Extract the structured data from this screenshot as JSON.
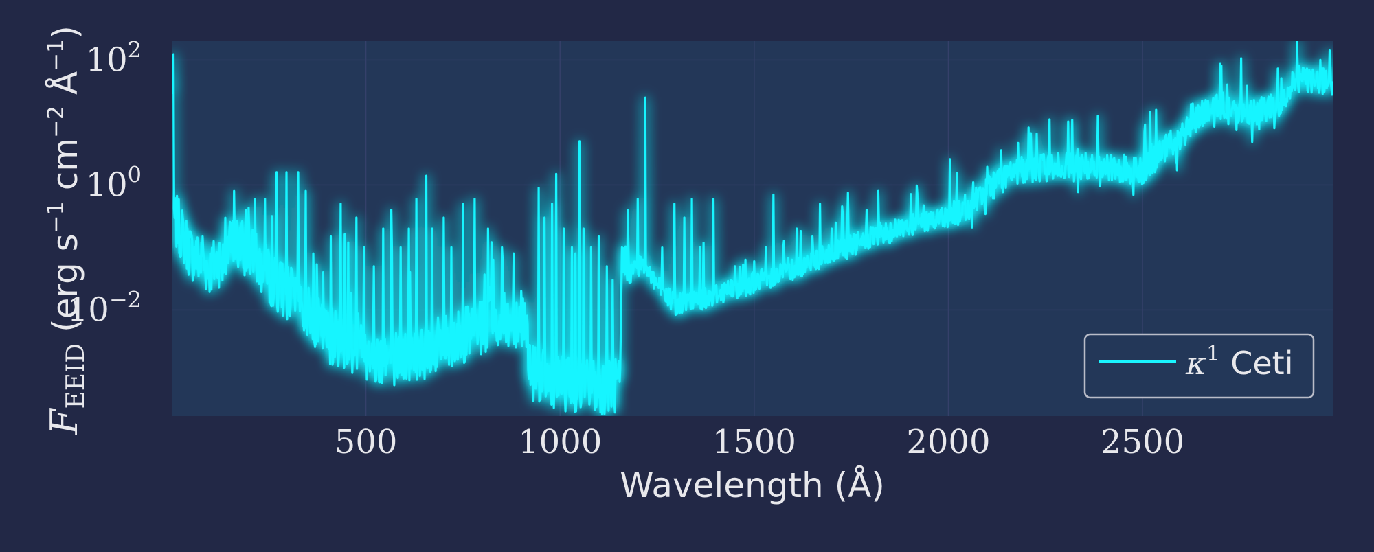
{
  "colors": {
    "background": "#222846",
    "plot_area": "#233758",
    "grid": "#35406a",
    "series": "#19f5ff",
    "text": "#e8e8ec",
    "legend_border": "#b9bcc8"
  },
  "chart_data": {
    "type": "line",
    "xlabel": "Wavelength (Å)",
    "ylabel": {
      "symbol": "F",
      "subscript": "EEID",
      "units": " (erg s",
      "units_exp1": "−1",
      "units_mid": " cm",
      "units_exp2": "−2",
      "units_mid2": " Å",
      "units_exp3": "−1",
      "units_end": ")"
    },
    "xlim": [
      0,
      2990
    ],
    "ylim": [
      0.0002,
      200
    ],
    "yscale": "log",
    "x_ticks": [
      500,
      1000,
      1500,
      2000,
      2500
    ],
    "x_tick_labels": [
      "500",
      "1000",
      "1500",
      "2000",
      "2500"
    ],
    "y_ticks": [
      {
        "value": 100,
        "base": "10",
        "exp": "2"
      },
      {
        "value": 1,
        "base": "10",
        "exp": "0"
      },
      {
        "value": 0.01,
        "base": "10",
        "exp": "−2"
      }
    ],
    "grid": true,
    "legend": {
      "position": "lower-right",
      "entries": [
        {
          "symbol": "κ",
          "sup": "1",
          "label": "Ceti"
        }
      ]
    },
    "series": [
      {
        "name": "κ1 Ceti",
        "continuum": [
          [
            5,
            0.3
          ],
          [
            20,
            0.2
          ],
          [
            50,
            0.08
          ],
          [
            100,
            0.045
          ],
          [
            160,
            0.12
          ],
          [
            200,
            0.08
          ],
          [
            260,
            0.03
          ],
          [
            320,
            0.015
          ],
          [
            400,
            0.004
          ],
          [
            480,
            0.0025
          ],
          [
            540,
            0.0017
          ],
          [
            600,
            0.0018
          ],
          [
            650,
            0.0022
          ],
          [
            700,
            0.003
          ],
          [
            780,
            0.0045
          ],
          [
            850,
            0.0065
          ],
          [
            910,
            0.0075
          ],
          [
            925,
            0.001
          ],
          [
            1000,
            0.0007
          ],
          [
            1050,
            0.0006
          ],
          [
            1100,
            0.0006
          ],
          [
            1155,
            0.0006
          ],
          [
            1160,
            0.06
          ],
          [
            1180,
            0.04
          ],
          [
            1215,
            0.06
          ],
          [
            1260,
            0.02
          ],
          [
            1300,
            0.012
          ],
          [
            1350,
            0.014
          ],
          [
            1400,
            0.018
          ],
          [
            1500,
            0.028
          ],
          [
            1600,
            0.045
          ],
          [
            1700,
            0.08
          ],
          [
            1800,
            0.14
          ],
          [
            1900,
            0.22
          ],
          [
            2000,
            0.32
          ],
          [
            2050,
            0.45
          ],
          [
            2100,
            0.8
          ],
          [
            2150,
            1.4
          ],
          [
            2200,
            1.8
          ],
          [
            2300,
            2.0
          ],
          [
            2400,
            2.0
          ],
          [
            2450,
            1.8
          ],
          [
            2500,
            1.6
          ],
          [
            2520,
            2.2
          ],
          [
            2550,
            3.5
          ],
          [
            2600,
            6.0
          ],
          [
            2650,
            14.0
          ],
          [
            2700,
            18.0
          ],
          [
            2800,
            15.0
          ],
          [
            2850,
            20.0
          ],
          [
            2900,
            50.0
          ],
          [
            2990,
            45.0
          ]
        ],
        "lines": [
          [
            5,
            3.0
          ],
          [
            45,
            0.18
          ],
          [
            80,
            0.15
          ],
          [
            160,
            0.8
          ],
          [
            190,
            0.4
          ],
          [
            215,
            0.6
          ],
          [
            240,
            0.6
          ],
          [
            270,
            1.6
          ],
          [
            295,
            1.6
          ],
          [
            325,
            1.6
          ],
          [
            345,
            0.8
          ],
          [
            365,
            0.08
          ],
          [
            390,
            0.04
          ],
          [
            410,
            0.15
          ],
          [
            435,
            0.5
          ],
          [
            455,
            0.12
          ],
          [
            475,
            0.3
          ],
          [
            495,
            0.1
          ],
          [
            520,
            0.05
          ],
          [
            545,
            0.2
          ],
          [
            565,
            0.4
          ],
          [
            590,
            0.1
          ],
          [
            610,
            0.2
          ],
          [
            630,
            0.6
          ],
          [
            655,
            1.4
          ],
          [
            670,
            0.2
          ],
          [
            700,
            0.3
          ],
          [
            720,
            0.1
          ],
          [
            750,
            0.5
          ],
          [
            780,
            0.6
          ],
          [
            815,
            0.2
          ],
          [
            850,
            0.1
          ],
          [
            880,
            0.08
          ],
          [
            900,
            0.02
          ],
          [
            945,
            0.9
          ],
          [
            960,
            0.3
          ],
          [
            980,
            0.5
          ],
          [
            990,
            1.5
          ],
          [
            1010,
            0.2
          ],
          [
            1030,
            0.1
          ],
          [
            1040,
            0.08
          ],
          [
            1050,
            5.0
          ],
          [
            1060,
            0.2
          ],
          [
            1080,
            0.1
          ],
          [
            1100,
            0.15
          ],
          [
            1120,
            0.05
          ],
          [
            1135,
            0.03
          ],
          [
            1160,
            0.1
          ],
          [
            1175,
            0.4
          ],
          [
            1200,
            0.6
          ],
          [
            1220,
            25.0
          ],
          [
            1240,
            0.04
          ],
          [
            1295,
            0.5
          ],
          [
            1320,
            0.3
          ],
          [
            1340,
            0.6
          ],
          [
            1360,
            0.1
          ],
          [
            1395,
            0.6
          ],
          [
            1450,
            0.05
          ],
          [
            1500,
            0.06
          ],
          [
            1530,
            0.1
          ],
          [
            1550,
            0.7
          ],
          [
            1575,
            0.1
          ],
          [
            1610,
            0.2
          ],
          [
            1650,
            0.15
          ],
          [
            1670,
            0.5
          ],
          [
            1700,
            0.2
          ],
          [
            1740,
            0.3
          ],
          [
            1790,
            0.4
          ],
          [
            1820,
            0.8
          ],
          [
            2260,
            3.5
          ],
          [
            2370,
            3.0
          ],
          [
            2420,
            3.0
          ],
          [
            2500,
            0.9
          ],
          [
            2630,
            20.0
          ],
          [
            2700,
            28.0
          ],
          [
            2850,
            4.0
          ],
          [
            2900,
            70.0
          ],
          [
            2950,
            65.0
          ]
        ]
      }
    ]
  }
}
